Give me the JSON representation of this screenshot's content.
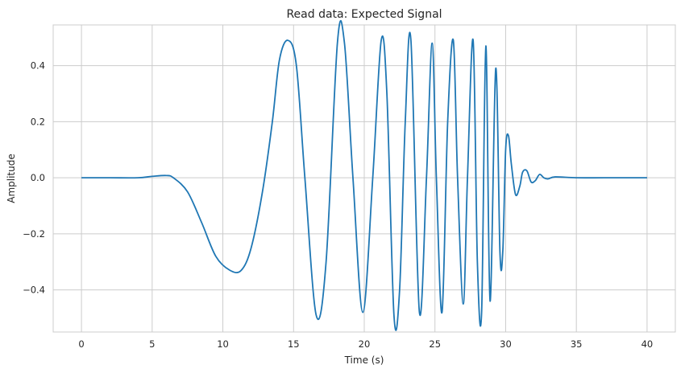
{
  "chart_data": {
    "type": "line",
    "title": "Read data: Expected Signal",
    "xlabel": "Time (s)",
    "ylabel": "Amplitude",
    "xlim": [
      -2,
      42
    ],
    "ylim": [
      -0.55,
      0.545
    ],
    "xticks": [
      0,
      5,
      10,
      15,
      20,
      25,
      30,
      35,
      40
    ],
    "xtick_labels": [
      "0",
      "5",
      "10",
      "15",
      "20",
      "25",
      "30",
      "35",
      "40"
    ],
    "yticks": [
      -0.4,
      -0.2,
      0.0,
      0.2,
      0.4
    ],
    "ytick_labels": [
      "−0.4",
      "−0.2",
      "0.0",
      "0.2",
      "0.4"
    ],
    "grid": true,
    "legend": "none",
    "line_color": "#1f77b4",
    "series": [
      {
        "x": [
          0,
          2,
          4,
          5,
          6,
          6.5,
          7.5,
          8.5,
          9.5,
          10.5,
          11.3,
          12,
          12.8,
          13.5,
          14,
          14.6,
          15.2,
          15.8,
          16.6,
          17.3,
          18.1,
          18.6,
          19.2,
          19.9,
          20.6,
          21.2,
          21.6,
          22.1,
          22.5,
          22.9,
          23.3,
          23.9,
          24.4,
          24.8,
          25.1,
          25.5,
          25.9,
          26.3,
          26.6,
          27.0,
          27.3,
          27.7,
          28.0,
          28.3,
          28.6,
          28.9,
          29.3,
          29.6,
          29.8,
          30.0,
          30.2,
          30.4,
          30.7,
          31.0,
          31.2,
          31.5,
          31.8,
          32.1,
          32.4,
          32.7,
          33.0,
          33.5,
          35,
          37,
          40
        ],
        "y": [
          0.0,
          0.0,
          0.0,
          0.005,
          0.008,
          0.0,
          -0.05,
          -0.16,
          -0.28,
          -0.33,
          -0.33,
          -0.25,
          -0.05,
          0.2,
          0.42,
          0.49,
          0.4,
          0.0,
          -0.49,
          -0.3,
          0.48,
          0.48,
          0.0,
          -0.48,
          0.0,
          0.49,
          0.3,
          -0.49,
          -0.4,
          0.2,
          0.49,
          -0.48,
          0.0,
          0.48,
          0.0,
          -0.48,
          0.2,
          0.49,
          0.0,
          -0.45,
          0.0,
          0.49,
          -0.3,
          -0.48,
          0.47,
          -0.44,
          0.39,
          -0.27,
          -0.26,
          0.1,
          0.15,
          0.05,
          -0.06,
          -0.03,
          0.02,
          0.025,
          -0.015,
          -0.01,
          0.012,
          0.0,
          -0.004,
          0.003,
          0.0,
          0.0,
          0.0
        ]
      }
    ]
  }
}
